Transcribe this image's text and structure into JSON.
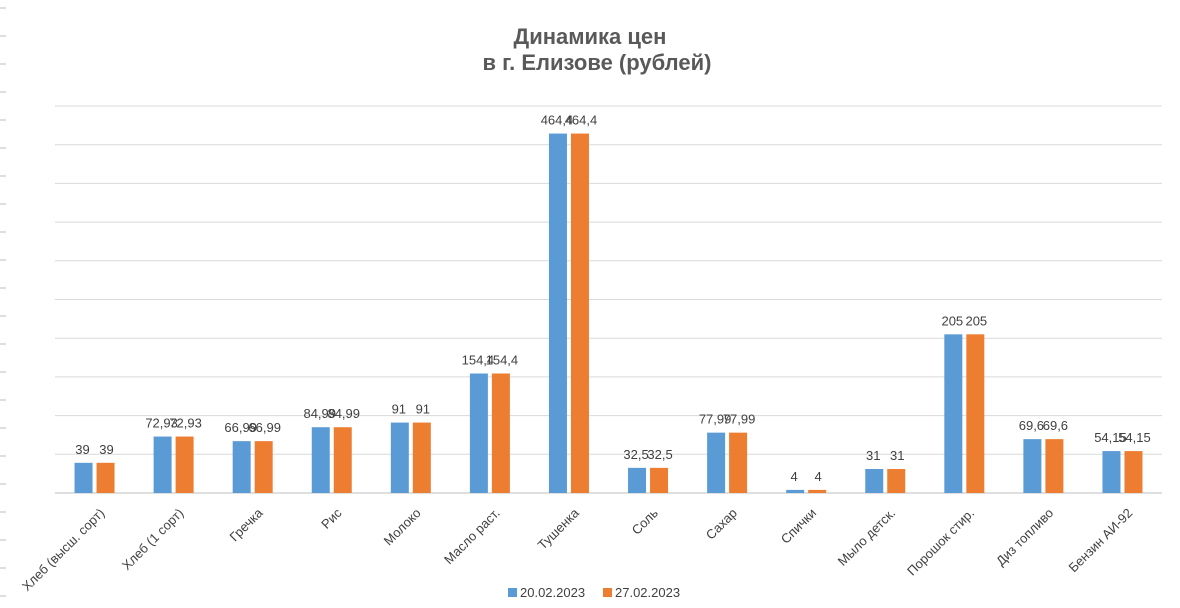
{
  "chart_data": {
    "type": "bar",
    "title": [
      "Динамика цен",
      "в г. Елизове (рублей)"
    ],
    "categories": [
      "Хлеб (высш. сорт)",
      "Хлеб (1 сорт)",
      "Гречка",
      "Рис",
      "Молоко",
      "Масло раст.",
      "Тушенка",
      "Соль",
      "Сахар",
      "Спички",
      "Мыло детск.",
      "Порошок стир.",
      "Диз топливо",
      "Бензин АИ-92"
    ],
    "series": [
      {
        "name": "20.02.2023",
        "color": "#5B9BD5",
        "values": [
          39,
          72.93,
          66.99,
          84.99,
          91,
          154.4,
          464.4,
          32.5,
          77.99,
          4,
          31,
          205,
          69.6,
          54.15
        ],
        "labels": [
          "39",
          "72,93",
          "66,99",
          "84,99",
          "91",
          "154,4",
          "464,4",
          "32,5",
          "77,99",
          "4",
          "31",
          "205",
          "69,6",
          "54,15"
        ]
      },
      {
        "name": "27.02.2023",
        "color": "#ED7D31",
        "values": [
          39,
          72.93,
          66.99,
          84.99,
          91,
          154.4,
          464.4,
          32.5,
          77.99,
          4,
          31,
          205,
          69.6,
          54.15
        ],
        "labels": [
          "39",
          "72,93",
          "66,99",
          "84,99",
          "91",
          "154,4",
          "464,4",
          "32,5",
          "77,99",
          "4",
          "31",
          "205",
          "69,6",
          "54,15"
        ]
      }
    ],
    "ylim": [
      0,
      500
    ],
    "grid": true,
    "legend": "bottom",
    "xlabel": "",
    "ylabel": ""
  }
}
